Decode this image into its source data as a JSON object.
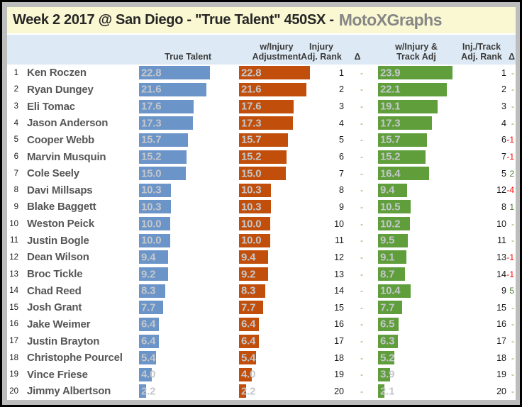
{
  "title": {
    "event": "Week 2 2017 @ San Diego - \"True Talent\" 450SX -",
    "brand": "MotoXGraphs"
  },
  "columns": {
    "true_talent": "True Talent",
    "injury_adj_line1": "w/Injury",
    "injury_adj_line2": "Adjustment",
    "injury_rank_line1": "Injury",
    "injury_rank_line2": "Adj. Rank",
    "delta1": "Δ",
    "track_adj_line1": "w/Injury &",
    "track_adj_line2": "Track Adj",
    "track_rank_line1": "Inj./Track",
    "track_rank_line2": "Adj. Rank",
    "delta2": "Δ"
  },
  "colors": {
    "true_talent_bar": "#6B94C8",
    "injury_adj_bar": "#C14F0B",
    "track_adj_bar": "#5F9E3B",
    "bar_label": "#C4C7CB",
    "delta_positive": "#4E7B2F",
    "delta_negative": "#FF0000",
    "delta_none": "#7F9C49",
    "title_background": "#FAF8D2",
    "header_background": "#DDE9F4"
  },
  "riders": [
    {
      "rank": 1,
      "name": "Ken Roczen",
      "true_talent": "22.8",
      "injury_adj": "22.8",
      "injury_rank": "1",
      "injury_delta": "-",
      "track_adj": "23.9",
      "track_rank": "1",
      "track_delta": "-"
    },
    {
      "rank": 2,
      "name": "Ryan Dungey",
      "true_talent": "21.6",
      "injury_adj": "21.6",
      "injury_rank": "2",
      "injury_delta": "-",
      "track_adj": "22.1",
      "track_rank": "2",
      "track_delta": "-"
    },
    {
      "rank": 3,
      "name": "Eli Tomac",
      "true_talent": "17.6",
      "injury_adj": "17.6",
      "injury_rank": "3",
      "injury_delta": "-",
      "track_adj": "19.1",
      "track_rank": "3",
      "track_delta": "-"
    },
    {
      "rank": 4,
      "name": "Jason Anderson",
      "true_talent": "17.3",
      "injury_adj": "17.3",
      "injury_rank": "4",
      "injury_delta": "-",
      "track_adj": "17.3",
      "track_rank": "4",
      "track_delta": "-"
    },
    {
      "rank": 5,
      "name": "Cooper Webb",
      "true_talent": "15.7",
      "injury_adj": "15.7",
      "injury_rank": "5",
      "injury_delta": "-",
      "track_adj": "15.7",
      "track_rank": "6",
      "track_delta": "-1"
    },
    {
      "rank": 6,
      "name": "Marvin Musquin",
      "true_talent": "15.2",
      "injury_adj": "15.2",
      "injury_rank": "6",
      "injury_delta": "-",
      "track_adj": "15.2",
      "track_rank": "7",
      "track_delta": "-1"
    },
    {
      "rank": 7,
      "name": "Cole Seely",
      "true_talent": "15.0",
      "injury_adj": "15.0",
      "injury_rank": "7",
      "injury_delta": "-",
      "track_adj": "16.4",
      "track_rank": "5",
      "track_delta": "2"
    },
    {
      "rank": 8,
      "name": "Davi Millsaps",
      "true_talent": "10.3",
      "injury_adj": "10.3",
      "injury_rank": "8",
      "injury_delta": "-",
      "track_adj": "9.4",
      "track_rank": "12",
      "track_delta": "-4"
    },
    {
      "rank": 9,
      "name": "Blake Baggett",
      "true_talent": "10.3",
      "injury_adj": "10.3",
      "injury_rank": "9",
      "injury_delta": "-",
      "track_adj": "10.5",
      "track_rank": "8",
      "track_delta": "1"
    },
    {
      "rank": 10,
      "name": "Weston Peick",
      "true_talent": "10.0",
      "injury_adj": "10.0",
      "injury_rank": "10",
      "injury_delta": "-",
      "track_adj": "10.2",
      "track_rank": "10",
      "track_delta": "-"
    },
    {
      "rank": 11,
      "name": "Justin Bogle",
      "true_talent": "10.0",
      "injury_adj": "10.0",
      "injury_rank": "11",
      "injury_delta": "-",
      "track_adj": "9.5",
      "track_rank": "11",
      "track_delta": "-"
    },
    {
      "rank": 12,
      "name": "Dean Wilson",
      "true_talent": "9.4",
      "injury_adj": "9.4",
      "injury_rank": "12",
      "injury_delta": "-",
      "track_adj": "9.1",
      "track_rank": "13",
      "track_delta": "-1"
    },
    {
      "rank": 13,
      "name": "Broc Tickle",
      "true_talent": "9.2",
      "injury_adj": "9.2",
      "injury_rank": "13",
      "injury_delta": "-",
      "track_adj": "8.7",
      "track_rank": "14",
      "track_delta": "-1"
    },
    {
      "rank": 14,
      "name": "Chad Reed",
      "true_talent": "8.3",
      "injury_adj": "8.3",
      "injury_rank": "14",
      "injury_delta": "-",
      "track_adj": "10.4",
      "track_rank": "9",
      "track_delta": "5"
    },
    {
      "rank": 15,
      "name": "Josh Grant",
      "true_talent": "7.7",
      "injury_adj": "7.7",
      "injury_rank": "15",
      "injury_delta": "-",
      "track_adj": "7.7",
      "track_rank": "15",
      "track_delta": "-"
    },
    {
      "rank": 16,
      "name": "Jake Weimer",
      "true_talent": "6.4",
      "injury_adj": "6.4",
      "injury_rank": "16",
      "injury_delta": "-",
      "track_adj": "6.5",
      "track_rank": "16",
      "track_delta": "-"
    },
    {
      "rank": 17,
      "name": "Justin Brayton",
      "true_talent": "6.4",
      "injury_adj": "6.4",
      "injury_rank": "17",
      "injury_delta": "-",
      "track_adj": "6.3",
      "track_rank": "17",
      "track_delta": "-"
    },
    {
      "rank": 18,
      "name": "Christophe Pourcel",
      "true_talent": "5.4",
      "injury_adj": "5.4",
      "injury_rank": "18",
      "injury_delta": "-",
      "track_adj": "5.2",
      "track_rank": "18",
      "track_delta": "-"
    },
    {
      "rank": 19,
      "name": "Vince Friese",
      "true_talent": "4.0",
      "injury_adj": "4.0",
      "injury_rank": "19",
      "injury_delta": "-",
      "track_adj": "3.9",
      "track_rank": "19",
      "track_delta": "-"
    },
    {
      "rank": 20,
      "name": "Jimmy Albertson",
      "true_talent": "2.2",
      "injury_adj": "2.2",
      "injury_rank": "20",
      "injury_delta": "-",
      "track_adj": "2.1",
      "track_rank": "20",
      "track_delta": "-"
    }
  ],
  "chart_data": {
    "type": "bar",
    "orientation": "horizontal",
    "title": "Week 2 2017 @ San Diego - \"True Talent\" 450SX - MotoXGraphs",
    "categories": [
      "Ken Roczen",
      "Ryan Dungey",
      "Eli Tomac",
      "Jason Anderson",
      "Cooper Webb",
      "Marvin Musquin",
      "Cole Seely",
      "Davi Millsaps",
      "Blake Baggett",
      "Weston Peick",
      "Justin Bogle",
      "Dean Wilson",
      "Broc Tickle",
      "Chad Reed",
      "Josh Grant",
      "Jake Weimer",
      "Justin Brayton",
      "Christophe Pourcel",
      "Vince Friese",
      "Jimmy Albertson"
    ],
    "category_ranks": [
      1,
      2,
      3,
      4,
      5,
      6,
      7,
      8,
      9,
      10,
      11,
      12,
      13,
      14,
      15,
      16,
      17,
      18,
      19,
      20
    ],
    "series": [
      {
        "name": "True Talent",
        "color": "#6B94C8",
        "values": [
          22.8,
          21.6,
          17.6,
          17.3,
          15.7,
          15.2,
          15.0,
          10.3,
          10.3,
          10.0,
          10.0,
          9.4,
          9.2,
          8.3,
          7.7,
          6.4,
          6.4,
          5.4,
          4.0,
          2.2
        ]
      },
      {
        "name": "w/Injury Adjustment",
        "color": "#C14F0B",
        "values": [
          22.8,
          21.6,
          17.6,
          17.3,
          15.7,
          15.2,
          15.0,
          10.3,
          10.3,
          10.0,
          10.0,
          9.4,
          9.2,
          8.3,
          7.7,
          6.4,
          6.4,
          5.4,
          4.0,
          2.2
        ]
      },
      {
        "name": "w/Injury & Track Adj",
        "color": "#5F9E3B",
        "values": [
          23.9,
          22.1,
          19.1,
          17.3,
          15.7,
          15.2,
          16.4,
          9.4,
          10.5,
          10.2,
          9.5,
          9.1,
          8.7,
          10.4,
          7.7,
          6.5,
          6.3,
          5.2,
          3.9,
          2.1
        ]
      }
    ],
    "injury_adj_rank": [
      1,
      2,
      3,
      4,
      5,
      6,
      7,
      8,
      9,
      10,
      11,
      12,
      13,
      14,
      15,
      16,
      17,
      18,
      19,
      20
    ],
    "injury_adj_delta": [
      "-",
      "-",
      "-",
      "-",
      "-",
      "-",
      "-",
      "-",
      "-",
      "-",
      "-",
      "-",
      "-",
      "-",
      "-",
      "-",
      "-",
      "-",
      "-",
      "-"
    ],
    "track_adj_rank": [
      1,
      2,
      3,
      4,
      6,
      7,
      5,
      12,
      8,
      10,
      11,
      13,
      14,
      9,
      15,
      16,
      17,
      18,
      19,
      20
    ],
    "track_adj_delta": [
      "-",
      "-",
      "-",
      "-",
      "-1",
      "-1",
      "2",
      "-4",
      "1",
      "-",
      "-",
      "-1",
      "-1",
      "5",
      "-",
      "-",
      "-",
      "-",
      "-",
      "-"
    ],
    "xlim": [
      0,
      24
    ],
    "value_labels": true,
    "grid": false,
    "legend_position": "column-headers"
  }
}
